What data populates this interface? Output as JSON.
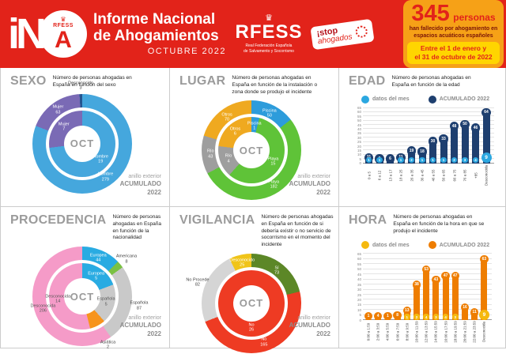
{
  "header": {
    "logo": {
      "i_n": "iN",
      "a": "A",
      "rfess_small": "RFESS",
      "crown": "♛"
    },
    "title_line1": "Informe Nacional",
    "title_line2": "de Ahogamientos",
    "subtitle": "OCTUBRE 2022",
    "rfess": {
      "crown": "♛",
      "name": "RFESS",
      "sub_line1": "Real Federación Española",
      "sub_line2": "de Salvamento y Socorrismo"
    },
    "stop_badge": {
      "line1": "¡stop",
      "line2": "ahogados"
    },
    "stat_box": {
      "number": "345",
      "unit": "personas",
      "description": "han fallecido por ahogamiento en espacios acuáticos españoles",
      "period_line1": "Entre el 1 de enero y",
      "period_line2": "el 31 de octubre de 2022",
      "accent_color": "#E2231A",
      "box_color": "#F6A117",
      "period_bg": "#FFD500"
    },
    "bg_color": "#E2231A"
  },
  "ring_note": {
    "line1": "anillo exterior",
    "line2": "ACUMULADO",
    "line3": "2022"
  },
  "center_label": "OCT",
  "chart_data": [
    {
      "id": "sexo",
      "type": "donut",
      "title": "SEXO",
      "description": "Número de personas ahogadas en España en función del sexo",
      "outer_ring": {
        "name": "ACUMULADO 2022",
        "slices": [
          {
            "label": "Hombre",
            "value": 279,
            "color": "#45A7DD"
          },
          {
            "label": "Mujer",
            "value": 63,
            "color": "#7A6AB5"
          },
          {
            "label": "Desconocido",
            "value": 3,
            "color": "#24548F",
            "outside": true
          }
        ]
      },
      "inner_ring": {
        "name": "OCT",
        "slices": [
          {
            "label": "Hombre",
            "value": 19,
            "color": "#45A7DD"
          },
          {
            "label": "Mujer",
            "value": 7,
            "color": "#7A6AB5"
          }
        ]
      }
    },
    {
      "id": "lugar",
      "type": "donut",
      "title": "LUGAR",
      "description": "Número de personas ahogadas en España en función de la instalación o zona donde se produjo el incidente",
      "outer_ring": {
        "name": "ACUMULADO 2022",
        "slices": [
          {
            "label": "Piscina",
            "value": 50,
            "color": "#2D9CDB"
          },
          {
            "label": "Playa",
            "value": 182,
            "color": "#5FC338"
          },
          {
            "label": "Río",
            "value": 43,
            "color": "#9E9E9E"
          },
          {
            "label": "Otros",
            "value": 70,
            "color": "#EFA920"
          }
        ]
      },
      "inner_ring": {
        "name": "OCT",
        "slices": [
          {
            "label": "Piscina",
            "value": 1,
            "color": "#2D9CDB"
          },
          {
            "label": "Playa",
            "value": 15,
            "color": "#5FC338"
          },
          {
            "label": "Río",
            "value": 4,
            "color": "#9E9E9E"
          },
          {
            "label": "Otros",
            "value": 6,
            "color": "#EFA920"
          }
        ]
      }
    },
    {
      "id": "edad",
      "type": "bar",
      "title": "EDAD",
      "description": "Número de personas ahogadas en España en función de la edad",
      "legend": [
        {
          "label": "datos del mes",
          "color": "#2BA7E0"
        },
        {
          "label": "ACUMULADO 2022",
          "color": "#1E3F6F"
        }
      ],
      "categories": [
        "0 a 5",
        "6 a 12",
        "13 a 17",
        "18 a 25",
        "26 a 35",
        "36 a 45",
        "46 a 55",
        "56 a 65",
        "66 a 75",
        "76 a 85",
        "+85",
        "Desconocida"
      ],
      "series": [
        {
          "name": "datos del mes",
          "color": "#2BA7E0",
          "values": [
            1,
            1,
            0,
            1,
            2,
            1,
            1,
            1,
            2,
            3,
            4,
            9
          ]
        },
        {
          "name": "ACUMULADO 2022",
          "color": "#1E3F6F",
          "values": [
            11,
            9,
            6,
            11,
            19,
            18,
            30,
            33,
            48,
            50,
            46,
            64
          ]
        }
      ],
      "ylim": [
        0,
        65
      ],
      "ystep": 5,
      "grid": true,
      "legend_position": "top"
    },
    {
      "id": "procedencia",
      "type": "donut",
      "title": "PROCEDENCIA",
      "description": "Número de personas ahogadas en España en función de la nacionalidad",
      "outer_ring": {
        "name": "ACUMULADO 2022",
        "slices": [
          {
            "label": "Europea",
            "value": 44,
            "color": "#29ABE2"
          },
          {
            "label": "Americana",
            "value": 8,
            "color": "#7AC143",
            "outside": true
          },
          {
            "label": "Española",
            "value": 87,
            "color": "#C9C9C9",
            "outside": true
          },
          {
            "label": "Desconocida",
            "value": 206,
            "color": "#F59BC8",
            "label_color": "#555"
          }
        ]
      },
      "inner_ring": {
        "name": "OCT",
        "slices": [
          {
            "label": "Europea",
            "value": 5,
            "color": "#29ABE2"
          },
          {
            "label": "Española",
            "value": 5,
            "color": "#C9C9C9",
            "label_color": "#555"
          },
          {
            "label": "Asiática",
            "value": 2,
            "color": "#F7941D",
            "outside": true
          },
          {
            "label": "Desconocida",
            "value": 14,
            "color": "#F59BC8",
            "label_color": "#555"
          }
        ]
      }
    },
    {
      "id": "vigilancia",
      "type": "donut",
      "title": "VIGILANCIA",
      "description": "Número de personas ahogadas en España en función de si debería existir o no servicio de socorrismo en el momento del incidente",
      "outer_ring": {
        "name": "ACUMULADO 2022",
        "slices": [
          {
            "label": "Sí",
            "value": 73,
            "color": "#5C8727"
          },
          {
            "label": "No",
            "value": 165,
            "color": "#EE3B23"
          },
          {
            "label": "No Procede",
            "value": 82,
            "color": "#D5D5D5",
            "outside": true
          },
          {
            "label": "Desconocido",
            "value": 25,
            "color": "#F0C419"
          }
        ]
      },
      "inner_ring": {
        "name": "OCT",
        "slices": [
          {
            "label": "No",
            "value": 26,
            "color": "#EE3B23"
          }
        ]
      }
    },
    {
      "id": "hora",
      "type": "bar",
      "title": "HORA",
      "description": "Número de personas ahogadas en España en función de la hora en que se produjo el incidente",
      "legend": [
        {
          "label": "datos del mes",
          "color": "#F5B90F"
        },
        {
          "label": "ACUMULADO 2022",
          "color": "#EE7D00"
        }
      ],
      "categories": [
        "0:00 a 1:59",
        "2:00 a 3:59",
        "4:00 a 5:59",
        "6:00 a 7:59",
        "8:00 a 9:59",
        "10:00 a 11:59",
        "12:00 a 13:59",
        "14:00 a 15:59",
        "16:00 a 17:59",
        "18:00 a 19:59",
        "20:00 a 21:59",
        "22:00 a 23:59",
        "Desconocida"
      ],
      "series": [
        {
          "name": "datos del mes",
          "color": "#F5B90F",
          "values": [
            0,
            0,
            0,
            0,
            1,
            2,
            4,
            3,
            4,
            3,
            0,
            0,
            9
          ]
        },
        {
          "name": "ACUMULADO 2022",
          "color": "#EE7D00",
          "values": [
            1,
            4,
            1,
            8,
            13,
            38,
            53,
            43,
            47,
            47,
            16,
            11,
            63
          ]
        }
      ],
      "ylim": [
        0,
        65
      ],
      "ystep": 5,
      "grid": true,
      "legend_position": "top"
    }
  ]
}
